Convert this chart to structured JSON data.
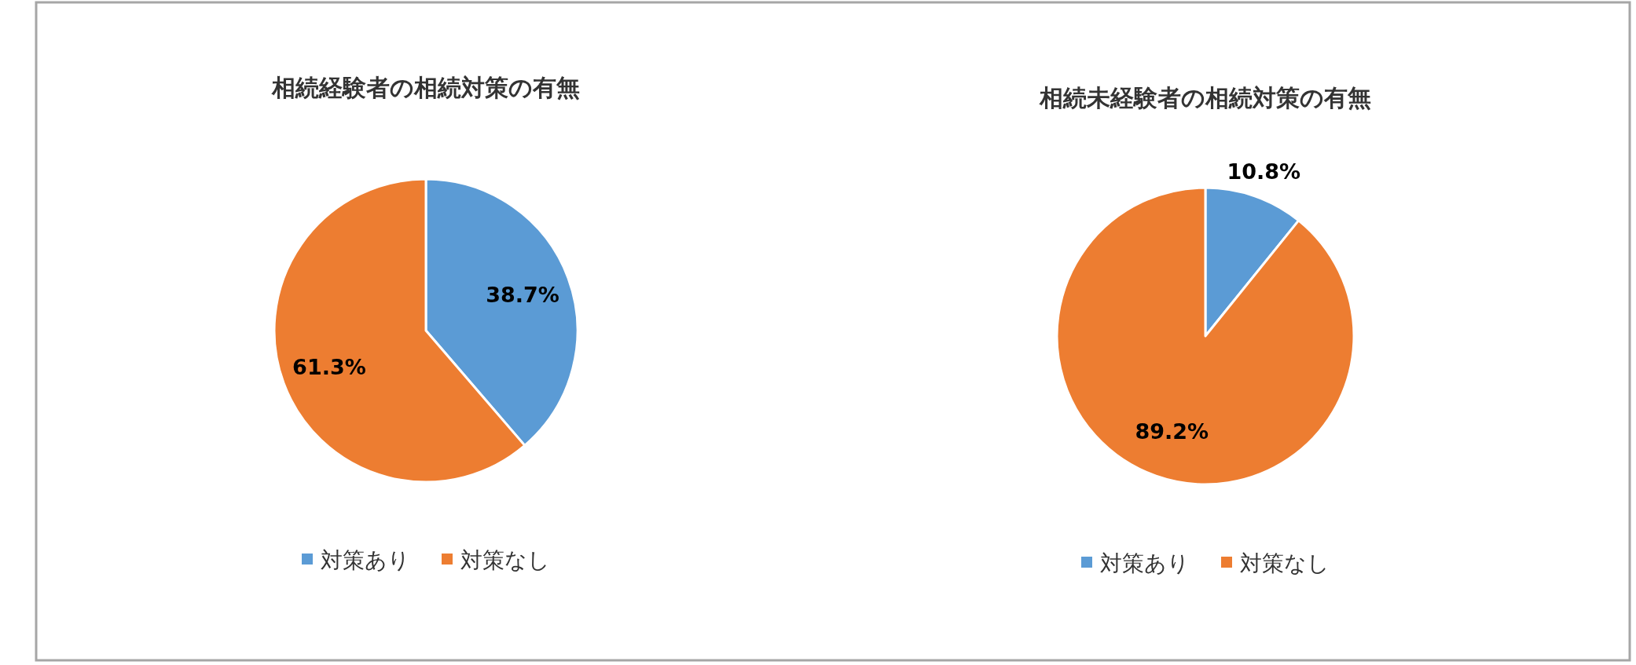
{
  "chart_data": [
    {
      "type": "pie",
      "title": "相続経験者の相続対策の有無",
      "categories": [
        "対策あり",
        "対策なし"
      ],
      "values": [
        38.7,
        61.3
      ],
      "value_labels": [
        "38.7%",
        "61.3%"
      ],
      "colors": [
        "#5b9bd5",
        "#ed7d31"
      ],
      "legend": "bottom"
    },
    {
      "type": "pie",
      "title": "相続未経験者の相続対策の有無",
      "categories": [
        "対策あり",
        "対策なし"
      ],
      "values": [
        10.8,
        89.2
      ],
      "value_labels": [
        "10.8%",
        "89.2%"
      ],
      "colors": [
        "#5b9bd5",
        "#ed7d31"
      ],
      "legend": "bottom"
    }
  ]
}
